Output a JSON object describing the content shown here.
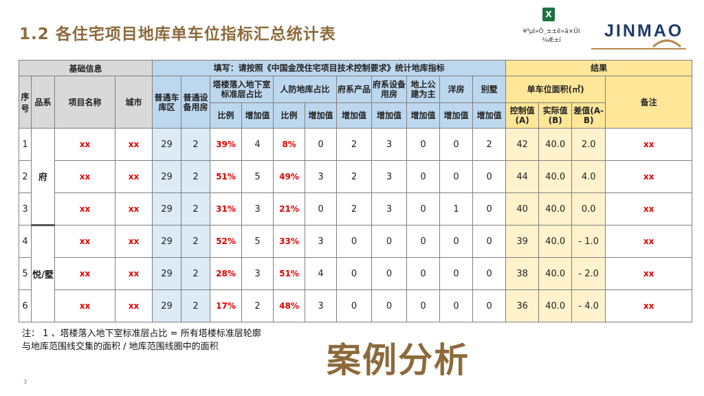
{
  "title": "1.2  各住宅项目地库单车位指标汇总统计表",
  "excel": {
    "icon": "excel-file-icon",
    "glyph": "X",
    "caption_line1": "¥³µÌ»Ô¸±±ê»ã×ÜI",
    "caption_line2": "¼Æ±í"
  },
  "logo": {
    "text": "JINMAO",
    "color": "#1f3a6b"
  },
  "colors": {
    "title": "#8c6a3c",
    "header_gray": "#d9d9d9",
    "header_blue": "#bdd7ee",
    "cell_blue": "#ddebf7",
    "header_yellow": "#ffe699",
    "cell_yellow": "#fff2cc",
    "placeholder_red": "#e00000"
  },
  "table": {
    "group_headers": {
      "basic": "基础信息",
      "fill": "填写：请按照《中国金茂住宅项目技术控制要求》统计地库指标",
      "result": "结果"
    },
    "col_headers": {
      "seq": "序号",
      "series": "品系",
      "project": "项目名称",
      "city": "城市",
      "garage_area": "普通车库区",
      "equip_room": "普通设备用房",
      "tower_ratio": "塔楼落入地下室标准层占比",
      "civil_def": "人防地库占比",
      "sys_product": "府系产品",
      "sys_equip": "府系设备用房",
      "public_ground": "地上公建为主",
      "western": "洋房",
      "villa": "别墅",
      "unit_area": "单车位面积(㎡)",
      "remark": "备注"
    },
    "sub_headers": {
      "ratio": "比例",
      "increment": "增加值",
      "control": "控制值(A)",
      "actual": "实际值(B)",
      "diff": "差值(A-B)"
    },
    "groups": [
      "府",
      "悦/墅"
    ],
    "rows": [
      {
        "seq": "1",
        "project": "xx",
        "city": "xx",
        "garage": "29",
        "equip": "2",
        "tower_ratio": "39%",
        "tower_inc": "4",
        "civil_ratio": "8%",
        "civil_inc": "0",
        "sys_product": "2",
        "sys_equip": "3",
        "public": "0",
        "western": "0",
        "villa": "2",
        "control": "42",
        "actual": "40.0",
        "diff": "2.0",
        "remark": "xx"
      },
      {
        "seq": "2",
        "project": "xx",
        "city": "xx",
        "garage": "29",
        "equip": "2",
        "tower_ratio": "51%",
        "tower_inc": "5",
        "civil_ratio": "49%",
        "civil_inc": "3",
        "sys_product": "2",
        "sys_equip": "3",
        "public": "0",
        "western": "0",
        "villa": "0",
        "control": "44",
        "actual": "40.0",
        "diff": "4.0",
        "remark": "xx"
      },
      {
        "seq": "3",
        "project": "xx",
        "city": "xx",
        "garage": "29",
        "equip": "2",
        "tower_ratio": "31%",
        "tower_inc": "3",
        "civil_ratio": "21%",
        "civil_inc": "0",
        "sys_product": "2",
        "sys_equip": "3",
        "public": "0",
        "western": "1",
        "villa": "0",
        "control": "40",
        "actual": "40.0",
        "diff": "0.0",
        "remark": "xx"
      },
      {
        "seq": "4",
        "project": "xx",
        "city": "xx",
        "garage": "29",
        "equip": "2",
        "tower_ratio": "52%",
        "tower_inc": "5",
        "civil_ratio": "33%",
        "civil_inc": "3",
        "sys_product": "0",
        "sys_equip": "0",
        "public": "0",
        "western": "0",
        "villa": "0",
        "control": "39",
        "actual": "40.0",
        "diff": "- 1.0",
        "remark": "xx"
      },
      {
        "seq": "5",
        "project": "xx",
        "city": "xx",
        "garage": "29",
        "equip": "2",
        "tower_ratio": "28%",
        "tower_inc": "3",
        "civil_ratio": "51%",
        "civil_inc": "4",
        "sys_product": "0",
        "sys_equip": "0",
        "public": "0",
        "western": "0",
        "villa": "0",
        "control": "38",
        "actual": "40.0",
        "diff": "- 2.0",
        "remark": "xx"
      },
      {
        "seq": "6",
        "project": "xx",
        "city": "xx",
        "garage": "29",
        "equip": "2",
        "tower_ratio": "17%",
        "tower_inc": "2",
        "civil_ratio": "48%",
        "civil_inc": "3",
        "sys_product": "0",
        "sys_equip": "0",
        "public": "0",
        "western": "0",
        "villa": "0",
        "control": "36",
        "actual": "40.0",
        "diff": "- 4.0",
        "remark": "xx"
      }
    ]
  },
  "note": {
    "line1": "注：  1 、塔楼落入地下室标准层占比 = 所有塔楼标准层轮廓",
    "line2": "与地库范围线交集的面积 / 地库范围线圈中的面积"
  },
  "stamp": "案例分析",
  "page_number": "3"
}
